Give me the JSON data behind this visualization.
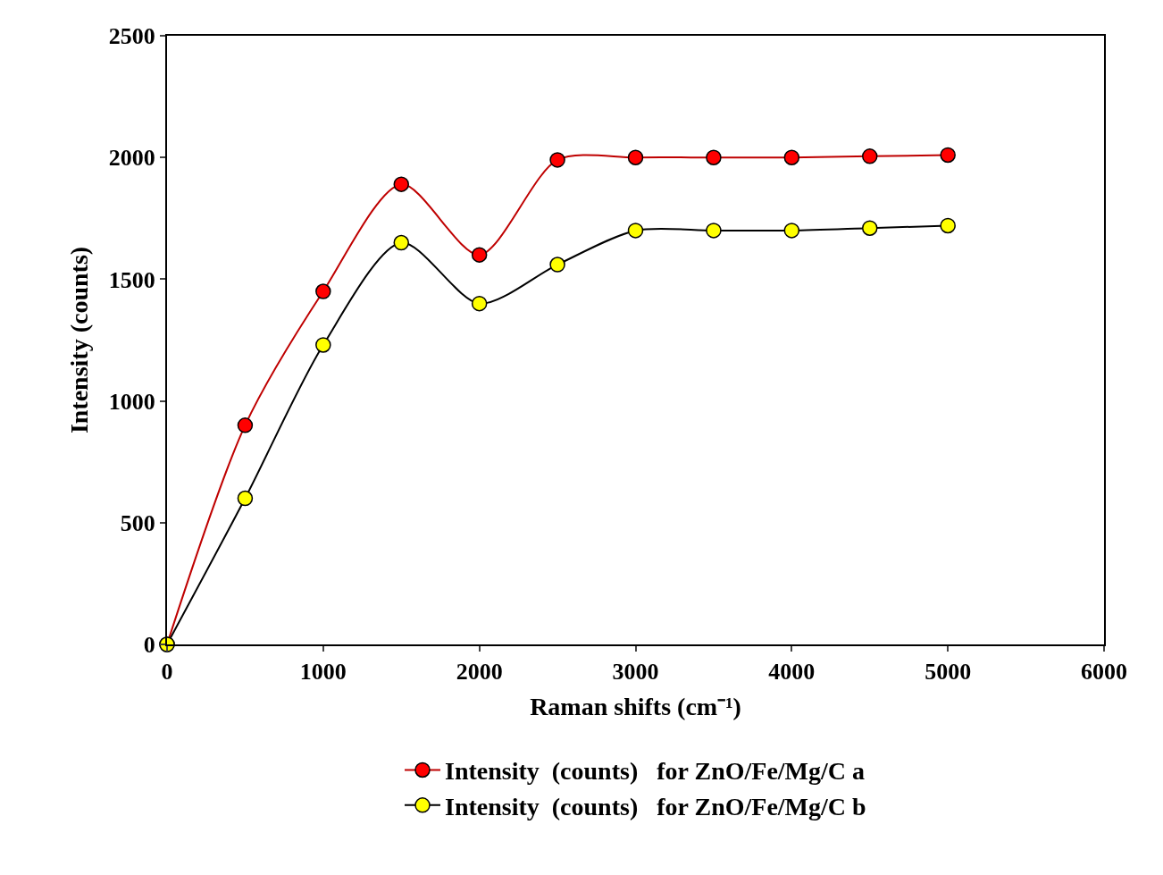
{
  "chart_data": {
    "type": "line",
    "xlabel": "Raman shifts (cm⁻¹)",
    "ylabel": "Intensity (counts)",
    "x": [
      0,
      500,
      1000,
      1500,
      2000,
      2500,
      3000,
      3500,
      4000,
      4500,
      5000
    ],
    "series": [
      {
        "name": "Intensity  (counts)   for ZnO/Fe/Mg/C a",
        "color": "#ff0000",
        "values": [
          0,
          900,
          1450,
          1890,
          1600,
          1990,
          2000,
          2000,
          2000,
          2005,
          2010
        ]
      },
      {
        "name": "Intensity  (counts)   for ZnO/Fe/Mg/C b",
        "color": "#ffff00",
        "values": [
          0,
          600,
          1230,
          1650,
          1400,
          1560,
          1700,
          1700,
          1700,
          1710,
          1720
        ]
      }
    ],
    "xlim": [
      0,
      6000
    ],
    "xticks": [
      0,
      1000,
      2000,
      3000,
      4000,
      5000,
      6000
    ],
    "ylim": [
      0,
      2500
    ],
    "yticks": [
      0,
      500,
      1000,
      1500,
      2000,
      2500
    ],
    "legend": "bottom",
    "marker": "circle",
    "line_style": "solid"
  }
}
